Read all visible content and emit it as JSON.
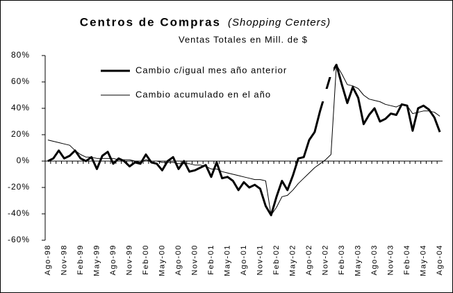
{
  "chart_data": {
    "type": "line",
    "title": "Centros de Compras",
    "title_note": "(Shopping Centers)",
    "subtitle": "Ventas Totales en Mill. de $",
    "categories": [
      "Ago-98",
      null,
      null,
      "Nov-98",
      null,
      null,
      "Feb-99",
      null,
      null,
      "May-99",
      null,
      null,
      "Ago-99",
      null,
      null,
      "Nov-99",
      null,
      null,
      "Feb-00",
      null,
      null,
      "May-00",
      null,
      null,
      "Ago-00",
      null,
      null,
      "Nov-00",
      null,
      null,
      "Feb-01",
      null,
      null,
      "May-01",
      null,
      null,
      "Ago-01",
      null,
      null,
      "Nov-01",
      null,
      null,
      "Feb-02",
      null,
      null,
      "May-02",
      null,
      null,
      "Ago-02",
      null,
      null,
      "Nov-02",
      null,
      null,
      "Feb-03",
      null,
      null,
      "May-03",
      null,
      null,
      "Ago-03",
      null,
      null,
      "Nov-03",
      null,
      null,
      "Feb-04",
      null,
      null,
      "May-04",
      null,
      null,
      "Ago-04"
    ],
    "series": [
      {
        "name": "Cambio c/igual mes año anterior",
        "color": "#000000",
        "width": 3,
        "values": [
          0,
          2,
          8,
          2,
          4,
          8,
          2,
          0,
          3,
          -6,
          4,
          7,
          -2,
          2,
          0,
          -4,
          -1,
          -2,
          5,
          -1,
          -2,
          -7,
          0,
          3,
          -6,
          0,
          -8,
          -7,
          -5,
          -3,
          -12,
          -1,
          -13,
          -12,
          -15,
          -22,
          -16,
          -20,
          -18,
          -21,
          -34,
          -41,
          -27,
          -15,
          -22,
          -11,
          2,
          3,
          16,
          22,
          38,
          52,
          66,
          73,
          58,
          44,
          56,
          48,
          28,
          35,
          40,
          30,
          32,
          36,
          35,
          43,
          42,
          23,
          40,
          42,
          39,
          33,
          22
        ]
      },
      {
        "name": "Cambio acumulado en el año",
        "color": "#000000",
        "width": 1,
        "values": [
          16,
          15,
          14,
          13,
          12,
          8,
          5,
          3,
          3,
          2,
          2,
          2,
          2,
          1,
          1,
          1,
          0,
          -1,
          1,
          0,
          0,
          -1,
          -1,
          -1,
          -2,
          -2,
          -2,
          -3,
          -3,
          -4,
          -6,
          -6,
          -8,
          -9,
          -10,
          -11,
          -12,
          -13,
          -14,
          -14,
          -15,
          -41,
          -35,
          -27,
          -26,
          -22,
          -17,
          -13,
          -9,
          -5,
          -2,
          1,
          5,
          73,
          66,
          58,
          57,
          55,
          50,
          47,
          46,
          45,
          43,
          42,
          41,
          43,
          42,
          36,
          37,
          38,
          38,
          37,
          34
        ]
      }
    ],
    "ylim": [
      -60,
      80
    ],
    "yticks": [
      {
        "value": -60,
        "label": "-60%"
      },
      {
        "value": -40,
        "label": "-40%"
      },
      {
        "value": -20,
        "label": "-20%"
      },
      {
        "value": 0,
        "label": "0%"
      },
      {
        "value": 20,
        "label": "20%"
      },
      {
        "value": 40,
        "label": "40%"
      },
      {
        "value": 60,
        "label": "60%"
      },
      {
        "value": 80,
        "label": "80%"
      }
    ],
    "legend": "top-left"
  }
}
